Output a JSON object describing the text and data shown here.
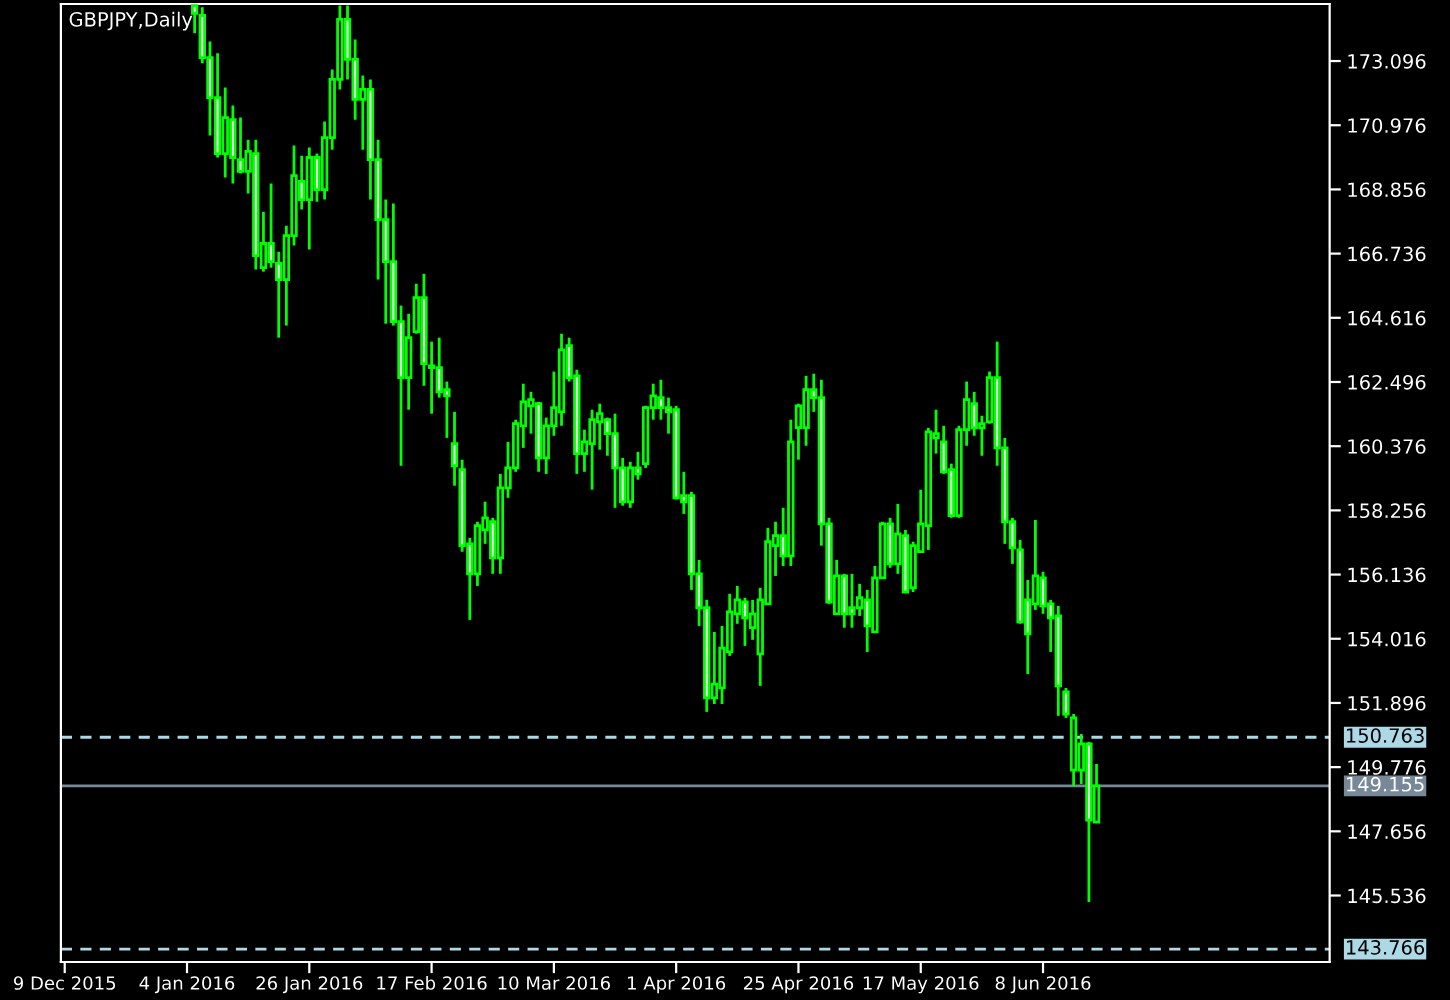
{
  "chart_data": {
    "type": "candlestick",
    "title": "GBPJPY,Daily",
    "color": "#00ff00",
    "categories": [
      "9 Dec 2015",
      null,
      null,
      null,
      null,
      null,
      null,
      null,
      null,
      null,
      null,
      null,
      null,
      null,
      null,
      null,
      "4 Jan 2016",
      null,
      null,
      null,
      null,
      null,
      null,
      null,
      null,
      null,
      null,
      null,
      null,
      null,
      null,
      null,
      "26 Jan 2016",
      null,
      null,
      null,
      null,
      null,
      null,
      null,
      null,
      null,
      null,
      null,
      null,
      null,
      null,
      null,
      "17 Feb 2016",
      null,
      null,
      null,
      null,
      null,
      null,
      null,
      null,
      null,
      null,
      null,
      null,
      null,
      null,
      null,
      "10 Mar 2016",
      null,
      null,
      null,
      null,
      null,
      null,
      null,
      null,
      null,
      null,
      null,
      null,
      null,
      null,
      null,
      "1 Apr 2016",
      null,
      null,
      null,
      null,
      null,
      null,
      null,
      null,
      null,
      null,
      null,
      null,
      null,
      null,
      null,
      "25 Apr 2016",
      null,
      null,
      null,
      null,
      null,
      null,
      null,
      null,
      null,
      null,
      null,
      null,
      null,
      null,
      null,
      "17 May 2016",
      null,
      null,
      null,
      null,
      null,
      null,
      null,
      null,
      null,
      null,
      null,
      null,
      null,
      null,
      null,
      "8 Jun 2016",
      null,
      null,
      null,
      null,
      null,
      null,
      null,
      null,
      null,
      null,
      null,
      null,
      null,
      null,
      null,
      null,
      null,
      null,
      null,
      null,
      null,
      null,
      null,
      null,
      null,
      null,
      null,
      null,
      null,
      null,
      null,
      null,
      null,
      null,
      null,
      null,
      null
    ],
    "ohlc": [
      null,
      null,
      null,
      null,
      null,
      null,
      null,
      null,
      null,
      null,
      null,
      null,
      null,
      null,
      null,
      null,
      null,
      [
        174.93,
        174.93,
        174.01,
        174.67
      ],
      [
        174.6,
        174.87,
        173.02,
        173.21
      ],
      [
        173.21,
        173.74,
        170.64,
        171.89
      ],
      [
        171.89,
        173.35,
        169.91,
        170.04
      ],
      [
        170.04,
        172.22,
        169.25,
        171.23
      ],
      [
        171.16,
        171.63,
        169.05,
        169.91
      ],
      [
        169.84,
        171.23,
        169.38,
        169.45
      ],
      [
        169.45,
        170.5,
        168.72,
        170.11
      ],
      [
        170.04,
        170.5,
        166.21,
        166.67
      ],
      [
        166.27,
        168.12,
        166.14,
        167.07
      ],
      [
        167.07,
        169.05,
        166.27,
        166.47
      ],
      [
        166.41,
        166.8,
        163.96,
        165.88
      ],
      [
        165.88,
        167.66,
        164.36,
        167.33
      ],
      [
        167.33,
        170.31,
        167.0,
        169.31
      ],
      [
        169.12,
        169.97,
        168.19,
        168.52
      ],
      [
        168.52,
        170.24,
        166.87,
        169.91
      ],
      [
        169.91,
        170.04,
        168.45,
        168.85
      ],
      [
        168.85,
        171.1,
        168.52,
        170.57
      ],
      [
        170.57,
        172.82,
        170.17,
        172.49
      ],
      [
        172.49,
        174.93,
        172.16,
        174.47
      ],
      [
        174.47,
        174.93,
        172.49,
        173.15
      ],
      [
        173.15,
        173.81,
        171.16,
        171.83
      ],
      [
        171.83,
        172.62,
        170.17,
        172.16
      ],
      [
        172.16,
        172.49,
        168.52,
        169.84
      ],
      [
        169.84,
        170.5,
        165.88,
        167.86
      ],
      [
        167.86,
        168.52,
        164.42,
        166.47
      ],
      [
        166.47,
        168.39,
        164.36,
        164.49
      ],
      [
        164.49,
        165.02,
        159.73,
        162.64
      ],
      [
        162.64,
        164.75,
        161.58,
        163.96
      ],
      [
        164.16,
        165.74,
        164.09,
        165.28
      ],
      [
        165.28,
        166.07,
        162.37,
        163.1
      ],
      [
        163.03,
        163.83,
        161.45,
        162.97
      ],
      [
        162.97,
        163.96,
        161.98,
        162.17
      ],
      [
        162.24,
        162.51,
        160.65,
        162.04
      ],
      [
        160.46,
        161.51,
        159.07,
        159.73
      ],
      [
        159.6,
        159.93,
        156.89,
        157.09
      ],
      [
        157.15,
        157.35,
        154.64,
        156.16
      ],
      [
        156.16,
        157.88,
        155.76,
        157.75
      ],
      [
        157.61,
        158.54,
        157.15,
        158.01
      ],
      [
        157.88,
        158.01,
        156.16,
        156.69
      ],
      [
        156.69,
        159.46,
        156.16,
        159.0
      ],
      [
        159.0,
        160.52,
        158.67,
        159.66
      ],
      [
        159.66,
        161.25,
        159.53,
        161.12
      ],
      [
        161.05,
        162.44,
        160.32,
        161.84
      ],
      [
        161.71,
        162.17,
        160.79,
        161.91
      ],
      [
        161.78,
        161.84,
        159.53,
        159.99
      ],
      [
        159.99,
        161.32,
        159.46,
        161.05
      ],
      [
        161.05,
        162.84,
        160.72,
        161.65
      ],
      [
        161.51,
        164.09,
        161.05,
        163.56
      ],
      [
        163.7,
        163.96,
        162.51,
        162.64
      ],
      [
        162.7,
        162.9,
        159.46,
        160.13
      ],
      [
        160.13,
        160.92,
        159.53,
        160.52
      ],
      [
        160.46,
        161.58,
        158.94,
        161.25
      ],
      [
        161.18,
        161.78,
        160.26,
        161.45
      ],
      [
        161.25,
        161.32,
        160.06,
        160.79
      ],
      [
        160.79,
        161.45,
        158.34,
        159.66
      ],
      [
        159.66,
        159.99,
        158.41,
        158.54
      ],
      [
        158.54,
        159.86,
        158.34,
        159.66
      ],
      [
        159.66,
        160.19,
        159.27,
        159.46
      ],
      [
        159.8,
        161.71,
        159.66,
        161.65
      ],
      [
        161.65,
        162.44,
        161.25,
        162.04
      ],
      [
        161.98,
        162.57,
        161.25,
        161.65
      ],
      [
        161.65,
        161.98,
        160.79,
        161.51
      ],
      [
        161.58,
        161.71,
        158.61,
        158.67
      ],
      [
        158.74,
        159.53,
        158.14,
        158.54
      ],
      [
        158.74,
        158.87,
        155.63,
        156.16
      ],
      [
        156.16,
        156.62,
        154.44,
        155.04
      ],
      [
        155.04,
        155.3,
        151.6,
        152.06
      ],
      [
        152.06,
        154.24,
        151.86,
        152.52
      ],
      [
        152.39,
        154.44,
        151.86,
        153.71
      ],
      [
        153.58,
        155.5,
        153.45,
        154.9
      ],
      [
        154.84,
        155.76,
        154.51,
        155.3
      ],
      [
        155.23,
        155.37,
        153.78,
        154.71
      ],
      [
        154.38,
        155.3,
        153.98,
        154.84
      ],
      [
        153.52,
        155.7,
        152.46,
        155.3
      ],
      [
        155.17,
        157.68,
        155.17,
        157.22
      ],
      [
        157.09,
        157.88,
        156.09,
        157.42
      ],
      [
        157.42,
        158.34,
        156.42,
        156.75
      ],
      [
        156.75,
        161.25,
        156.42,
        160.52
      ],
      [
        160.99,
        161.78,
        159.93,
        161.71
      ],
      [
        160.99,
        162.7,
        160.39,
        162.24
      ],
      [
        162.24,
        162.77,
        161.51,
        161.98
      ],
      [
        161.98,
        162.57,
        157.09,
        157.81
      ],
      [
        157.81,
        158.01,
        155.17,
        155.23
      ],
      [
        154.84,
        156.62,
        154.84,
        156.09
      ],
      [
        156.09,
        156.16,
        154.38,
        154.84
      ],
      [
        155.04,
        156.16,
        154.38,
        154.84
      ],
      [
        155.04,
        155.83,
        154.77,
        155.37
      ],
      [
        155.3,
        155.63,
        153.58,
        154.44
      ],
      [
        154.24,
        156.42,
        154.24,
        156.03
      ],
      [
        156.03,
        157.88,
        156.03,
        157.81
      ],
      [
        157.81,
        158.01,
        156.36,
        156.49
      ],
      [
        156.49,
        158.47,
        156.16,
        157.48
      ],
      [
        157.42,
        157.61,
        155.56,
        155.56
      ],
      [
        155.7,
        157.22,
        155.56,
        157.09
      ],
      [
        156.89,
        158.94,
        156.89,
        157.81
      ],
      [
        157.75,
        160.98,
        156.95,
        160.85
      ],
      [
        160.65,
        161.58,
        160.13,
        160.79
      ],
      [
        160.52,
        161.05,
        159.46,
        159.53
      ],
      [
        159.6,
        159.8,
        158.01,
        158.08
      ],
      [
        158.08,
        161.05,
        158.01,
        160.92
      ],
      [
        160.92,
        162.51,
        160.39,
        161.91
      ],
      [
        161.78,
        162.17,
        160.72,
        160.98
      ],
      [
        160.98,
        161.38,
        160.06,
        161.12
      ],
      [
        161.18,
        162.84,
        161.12,
        162.64
      ],
      [
        162.64,
        163.83,
        159.73,
        160.32
      ],
      [
        160.32,
        160.65,
        157.15,
        157.88
      ],
      [
        157.88,
        158.01,
        156.49,
        157.02
      ],
      [
        156.95,
        157.28,
        154.51,
        154.57
      ],
      [
        155.3,
        155.96,
        152.85,
        154.18
      ],
      [
        155.17,
        157.94,
        154.97,
        156.09
      ],
      [
        156.03,
        156.23,
        154.84,
        155.1
      ],
      [
        155.17,
        155.3,
        153.58,
        154.71
      ],
      [
        154.77,
        155.1,
        151.47,
        152.46
      ],
      [
        152.26,
        152.39,
        151.4,
        151.53
      ],
      [
        149.68,
        151.53,
        149.15,
        151.4
      ],
      [
        149.68,
        150.87,
        149.22,
        150.54
      ],
      [
        150.54,
        150.61,
        145.32,
        148.03
      ],
      [
        147.96,
        149.88,
        147.96,
        149.155
      ],
      null,
      null,
      null,
      null,
      null,
      null,
      null,
      null,
      null,
      null,
      null,
      null,
      null,
      null,
      null,
      null,
      null,
      null,
      null,
      null,
      null,
      null,
      null,
      null,
      null,
      null,
      null,
      null,
      null,
      null
    ],
    "ylim": [
      143.34,
      174.98
    ],
    "yticks": [
      173.096,
      170.976,
      168.856,
      166.736,
      164.616,
      162.496,
      160.376,
      158.256,
      156.136,
      154.016,
      151.896,
      149.776,
      147.656,
      145.536
    ],
    "ref_lines": [
      {
        "axis": "y",
        "value": 150.763,
        "label": "150.763",
        "color": "#add8e6",
        "line_style": "dashed"
      },
      {
        "axis": "y",
        "value": 149.155,
        "label": "149.155",
        "color": "#778899",
        "line_style": "solid"
      },
      {
        "axis": "y",
        "value": 143.766,
        "label": "143.766",
        "color": "#add8e6",
        "line_style": "dashed"
      }
    ],
    "grid": false,
    "legend": false
  }
}
